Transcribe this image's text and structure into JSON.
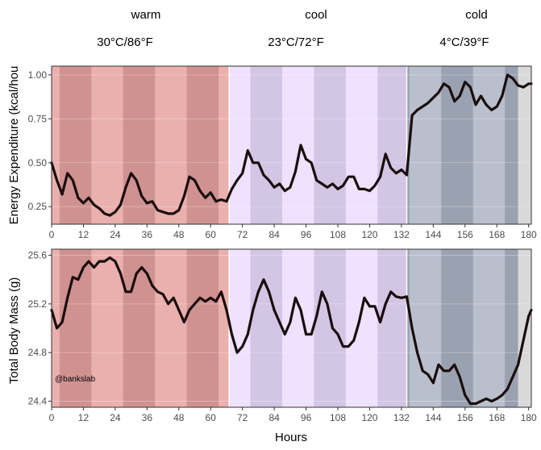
{
  "conditions": [
    {
      "name": "warm",
      "temp": "30°C/86°F",
      "start": 0,
      "end": 67,
      "color": "#eab0ae",
      "dark": "#cf9291"
    },
    {
      "name": "cool",
      "temp": "23°C/72°F",
      "start": 67,
      "end": 134,
      "color": "#efe1ff",
      "dark": "#d3c5e4"
    },
    {
      "name": "cold",
      "temp": "4°C/39°F",
      "start": 134,
      "end": 181,
      "color": "#b9bfcc",
      "dark": "#9aa1b1"
    }
  ],
  "watermark": "@bankslab",
  "chart_data": [
    {
      "type": "line",
      "ylabel": "Energy Expenditure (kcal/hou",
      "xlim": [
        0,
        181
      ],
      "ylim": [
        0.15,
        1.05
      ],
      "yticks": [
        0.25,
        0.5,
        0.75,
        1.0
      ],
      "ytick_labels": [
        "0.25",
        "0.50",
        "0.75",
        "1.00"
      ],
      "xticks": [
        0,
        12,
        24,
        36,
        48,
        60,
        72,
        84,
        96,
        108,
        120,
        132,
        144,
        156,
        168,
        180
      ],
      "line_color": "#1a0d0d",
      "series": [
        {
          "x": [
            0,
            2,
            4,
            6,
            8,
            10,
            12,
            14,
            16,
            18,
            20,
            22,
            24,
            26,
            28,
            30,
            32,
            34,
            36,
            38,
            40,
            42,
            44,
            46,
            48,
            50,
            52,
            54,
            56,
            58,
            60,
            62,
            64,
            66,
            68,
            70,
            72,
            74,
            76,
            78,
            80,
            82,
            84,
            86,
            88,
            90,
            92,
            94,
            96,
            98,
            100,
            102,
            104,
            106,
            108,
            110,
            112,
            114,
            116,
            118,
            120,
            122,
            124,
            126,
            128,
            130,
            132,
            134,
            136,
            138,
            140,
            142,
            144,
            146,
            148,
            150,
            152,
            154,
            156,
            158,
            160,
            162,
            164,
            166,
            168,
            170,
            172,
            174,
            176,
            178,
            180,
            181
          ],
          "y": [
            0.5,
            0.4,
            0.32,
            0.44,
            0.4,
            0.3,
            0.27,
            0.3,
            0.26,
            0.24,
            0.21,
            0.2,
            0.22,
            0.26,
            0.36,
            0.44,
            0.4,
            0.31,
            0.27,
            0.28,
            0.23,
            0.22,
            0.21,
            0.21,
            0.23,
            0.31,
            0.42,
            0.4,
            0.34,
            0.3,
            0.33,
            0.28,
            0.29,
            0.28,
            0.35,
            0.4,
            0.44,
            0.57,
            0.5,
            0.5,
            0.43,
            0.4,
            0.36,
            0.38,
            0.34,
            0.36,
            0.45,
            0.6,
            0.52,
            0.5,
            0.4,
            0.38,
            0.36,
            0.38,
            0.35,
            0.37,
            0.42,
            0.42,
            0.35,
            0.35,
            0.34,
            0.37,
            0.42,
            0.55,
            0.47,
            0.44,
            0.46,
            0.43,
            0.77,
            0.8,
            0.82,
            0.84,
            0.87,
            0.9,
            0.95,
            0.93,
            0.85,
            0.88,
            0.96,
            0.93,
            0.83,
            0.88,
            0.83,
            0.8,
            0.82,
            0.88,
            1.0,
            0.98,
            0.94,
            0.93,
            0.95,
            0.95
          ]
        }
      ]
    },
    {
      "type": "line",
      "ylabel": "Total Body Mass (g)",
      "xlabel": "Hours",
      "xlim": [
        0,
        181
      ],
      "ylim": [
        24.35,
        25.65
      ],
      "yticks": [
        24.4,
        24.8,
        25.2,
        25.6
      ],
      "ytick_labels": [
        "24.4",
        "24.8",
        "25.2",
        "25.6"
      ],
      "xticks": [
        0,
        12,
        24,
        36,
        48,
        60,
        72,
        84,
        96,
        108,
        120,
        132,
        144,
        156,
        168,
        180
      ],
      "line_color": "#1a0d0d",
      "series": [
        {
          "x": [
            0,
            2,
            4,
            6,
            8,
            10,
            12,
            14,
            16,
            18,
            20,
            22,
            24,
            26,
            28,
            30,
            32,
            34,
            36,
            38,
            40,
            42,
            44,
            46,
            48,
            50,
            52,
            54,
            56,
            58,
            60,
            62,
            64,
            66,
            68,
            70,
            72,
            74,
            76,
            78,
            80,
            82,
            84,
            86,
            88,
            90,
            92,
            94,
            96,
            98,
            100,
            102,
            104,
            106,
            108,
            110,
            112,
            114,
            116,
            118,
            120,
            122,
            124,
            126,
            128,
            130,
            132,
            134,
            136,
            138,
            140,
            142,
            144,
            146,
            148,
            150,
            152,
            154,
            156,
            158,
            160,
            162,
            164,
            166,
            168,
            170,
            172,
            174,
            176,
            178,
            180,
            181
          ],
          "y": [
            25.15,
            25.0,
            25.05,
            25.25,
            25.42,
            25.4,
            25.5,
            25.55,
            25.5,
            25.55,
            25.55,
            25.58,
            25.55,
            25.45,
            25.3,
            25.3,
            25.45,
            25.5,
            25.45,
            25.35,
            25.3,
            25.28,
            25.2,
            25.25,
            25.15,
            25.05,
            25.15,
            25.2,
            25.25,
            25.22,
            25.25,
            25.22,
            25.3,
            25.15,
            24.95,
            24.8,
            24.85,
            24.95,
            25.15,
            25.3,
            25.4,
            25.3,
            25.15,
            25.05,
            24.95,
            25.05,
            25.25,
            25.15,
            24.95,
            24.95,
            25.1,
            25.3,
            25.2,
            25.0,
            24.95,
            24.85,
            24.85,
            24.9,
            25.05,
            25.25,
            25.18,
            25.18,
            25.05,
            25.2,
            25.3,
            25.26,
            25.25,
            25.26,
            25.0,
            24.8,
            24.65,
            24.62,
            24.55,
            24.7,
            24.65,
            24.65,
            24.7,
            24.6,
            24.45,
            24.38,
            24.38,
            24.4,
            24.42,
            24.4,
            24.42,
            24.45,
            24.5,
            24.6,
            24.7,
            24.9,
            25.1,
            25.15
          ]
        }
      ]
    }
  ]
}
